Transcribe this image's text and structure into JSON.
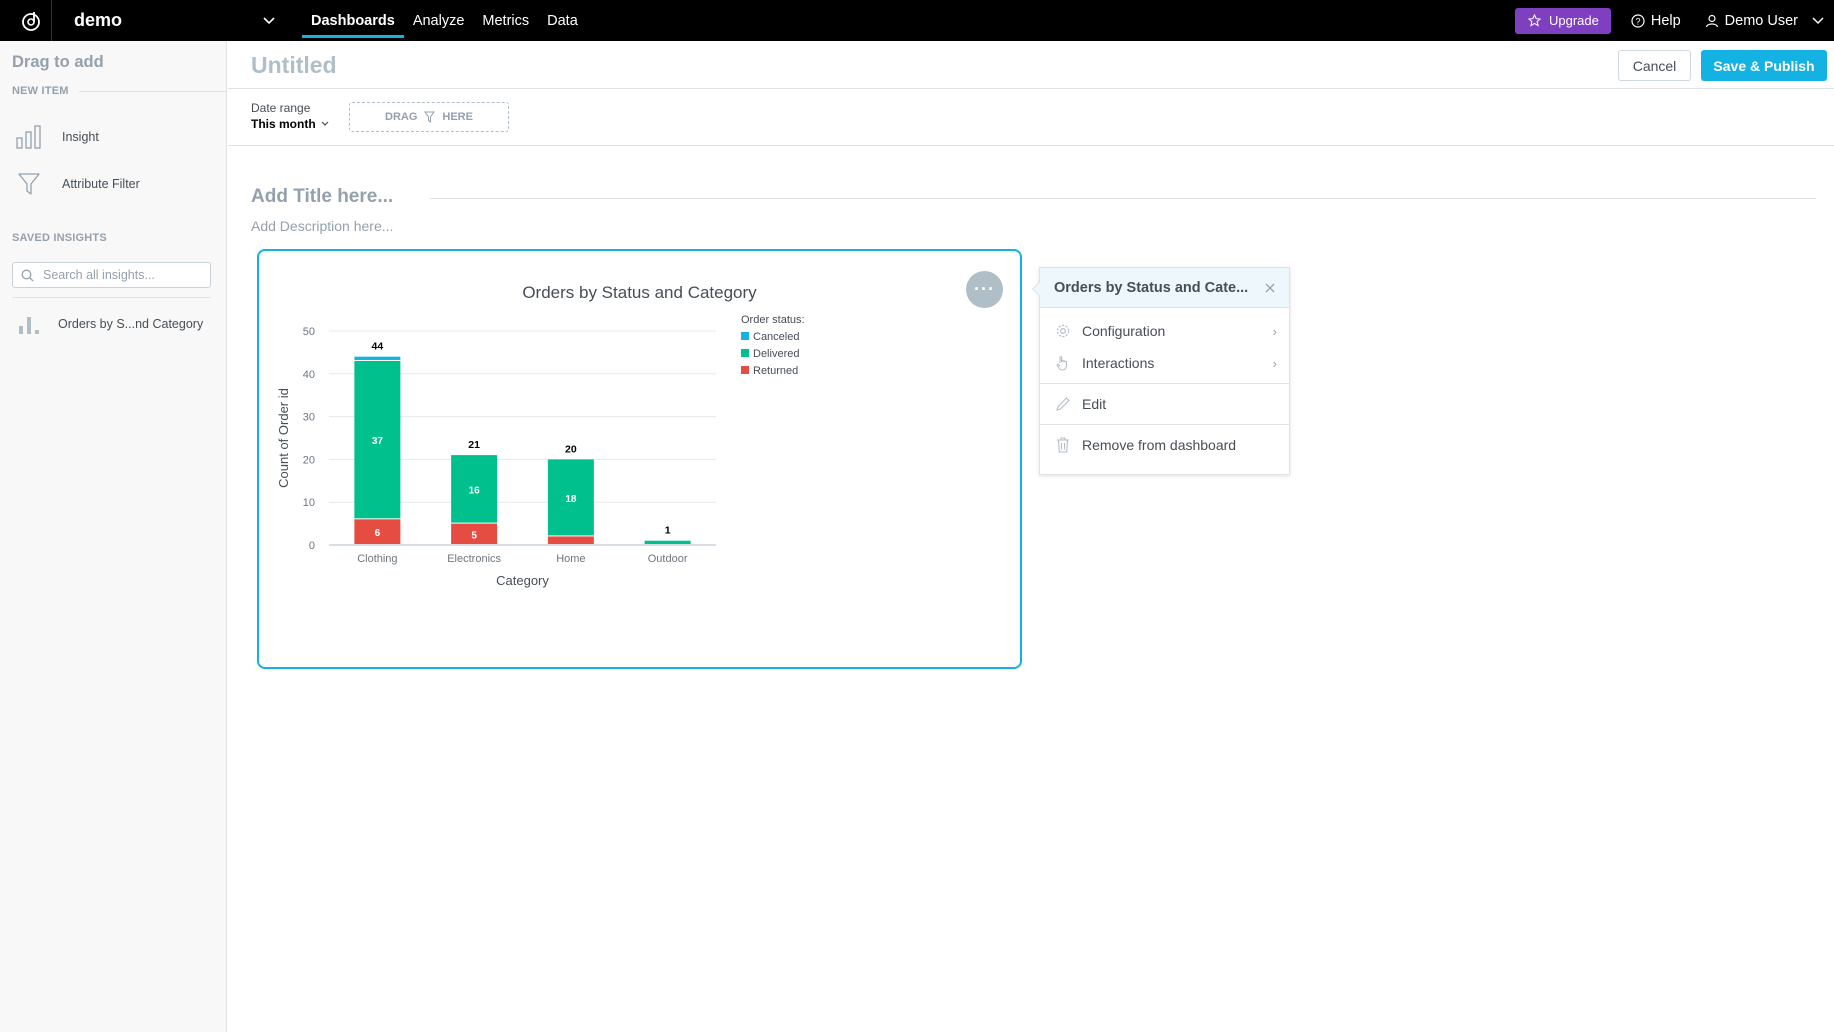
{
  "app": {
    "workspace": "demo"
  },
  "nav": {
    "items": [
      "Dashboards",
      "Analyze",
      "Metrics",
      "Data"
    ],
    "active": "Dashboards"
  },
  "top_right": {
    "upgrade": "Upgrade",
    "help": "Help",
    "user": "Demo User"
  },
  "sidebar": {
    "title": "Drag to add",
    "new_item_header": "NEW ITEM",
    "new_items": [
      "Insight",
      "Attribute Filter"
    ],
    "saved_header": "SAVED INSIGHTS",
    "search_placeholder": "Search all insights...",
    "saved_items": [
      "Orders by S...nd Category"
    ]
  },
  "dashboard": {
    "title": "Untitled",
    "cancel": "Cancel",
    "save_publish": "Save & Publish",
    "date_range_label": "Date range",
    "date_range_value": "This month",
    "drag_left": "DRAG",
    "drag_right": "HERE",
    "add_title": "Add Title here...",
    "add_description": "Add Description here..."
  },
  "widget": {
    "title": "Orders by Status and Category",
    "menu_glyph": "···"
  },
  "popup": {
    "title": "Orders by Status and Cate...",
    "items": [
      "Configuration",
      "Interactions",
      "Edit",
      "Remove from dashboard"
    ]
  },
  "colors": {
    "accent": "#14b2e2",
    "upgrade": "#7f3fc1",
    "canceled": "#14b2e2",
    "delivered": "#00c18d",
    "returned": "#e54d42"
  },
  "chart_data": {
    "type": "bar",
    "stacked": true,
    "title": "Orders by Status and Category",
    "xlabel": "Category",
    "ylabel": "Count of Order id",
    "categories": [
      "Clothing",
      "Electronics",
      "Home",
      "Outdoor"
    ],
    "series": [
      {
        "name": "Canceled",
        "values": [
          1,
          0,
          0,
          0
        ],
        "color": "#14b2e2"
      },
      {
        "name": "Delivered",
        "values": [
          37,
          16,
          18,
          1
        ],
        "color": "#00c18d"
      },
      {
        "name": "Returned",
        "values": [
          6,
          5,
          2,
          0
        ],
        "color": "#e54d42"
      }
    ],
    "totals": [
      44,
      21,
      20,
      1
    ],
    "ylim": [
      0,
      50
    ],
    "yticks": [
      0,
      10,
      20,
      30,
      40,
      50
    ],
    "legend_title": "Order status:",
    "legend_position": "top-right",
    "grid": true
  }
}
